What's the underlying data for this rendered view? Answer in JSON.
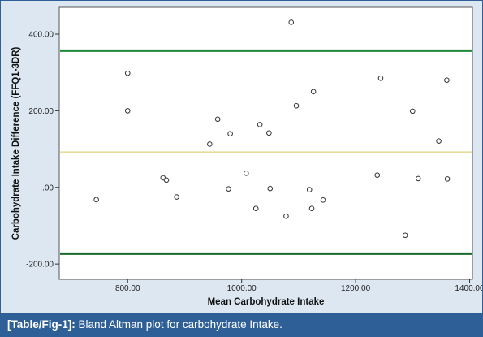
{
  "chart_data": {
    "type": "scatter",
    "title": "",
    "xlabel": "Mean Carbohydrate Intake",
    "ylabel": "Carbohydrate Intake Difference (FFQ1-3DR)",
    "xlim": [
      680,
      1405
    ],
    "ylim": [
      -240,
      470
    ],
    "x_ticks": [
      800,
      1000,
      1200,
      1400
    ],
    "x_tick_labels": [
      "800.00",
      "1000.00",
      "1200.00",
      "1400.00"
    ],
    "y_ticks": [
      400,
      200,
      0,
      -200
    ],
    "y_tick_labels": [
      "400.00",
      "200.00",
      ".00",
      "-200.00"
    ],
    "grid": false,
    "reference_lines": [
      {
        "value": 357,
        "color": "#1e8a3a"
      },
      {
        "value": 92,
        "color": "#e8dc9a"
      },
      {
        "value": -173,
        "color": "#1a6a2e"
      }
    ],
    "points": [
      {
        "x": 745,
        "y": -32
      },
      {
        "x": 800,
        "y": 298
      },
      {
        "x": 800,
        "y": 200
      },
      {
        "x": 862,
        "y": 25
      },
      {
        "x": 868,
        "y": 19
      },
      {
        "x": 886,
        "y": -25
      },
      {
        "x": 944,
        "y": 113
      },
      {
        "x": 958,
        "y": 178
      },
      {
        "x": 977,
        "y": -4
      },
      {
        "x": 980,
        "y": 140
      },
      {
        "x": 1008,
        "y": 37
      },
      {
        "x": 1025,
        "y": -55
      },
      {
        "x": 1032,
        "y": 164
      },
      {
        "x": 1048,
        "y": 142
      },
      {
        "x": 1050,
        "y": -3
      },
      {
        "x": 1078,
        "y": -75
      },
      {
        "x": 1087,
        "y": 431
      },
      {
        "x": 1096,
        "y": 213
      },
      {
        "x": 1119,
        "y": -6
      },
      {
        "x": 1123,
        "y": -55
      },
      {
        "x": 1126,
        "y": 250
      },
      {
        "x": 1143,
        "y": -33
      },
      {
        "x": 1238,
        "y": 32
      },
      {
        "x": 1244,
        "y": 285
      },
      {
        "x": 1287,
        "y": -125
      },
      {
        "x": 1300,
        "y": 199
      },
      {
        "x": 1310,
        "y": 23
      },
      {
        "x": 1346,
        "y": 121
      },
      {
        "x": 1360,
        "y": 280
      },
      {
        "x": 1361,
        "y": 22
      }
    ]
  },
  "caption": {
    "tag": "[Table/Fig-1]:",
    "text": " Bland Altman plot for carbohydrate Intake."
  }
}
